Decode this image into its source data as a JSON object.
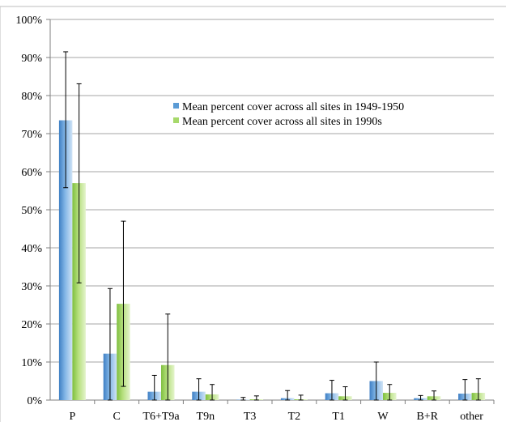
{
  "chart_data": {
    "type": "bar",
    "categories": [
      "P",
      "C",
      "T6+T9a",
      "T9n",
      "T3",
      "T2",
      "T1",
      "W",
      "B+R",
      "other"
    ],
    "series": [
      {
        "name": "Mean percent cover across all sites in 1949-1950",
        "values": [
          73.5,
          12.2,
          2.2,
          2.2,
          0.1,
          0.5,
          1.8,
          5.0,
          0.5,
          1.7
        ],
        "error_upper": [
          91.5,
          29.3,
          6.5,
          5.6,
          0.7,
          2.5,
          5.2,
          10.0,
          1.2,
          5.4
        ],
        "error_lower": [
          55.8,
          0.0,
          0.0,
          0.0,
          0.0,
          0.0,
          0.0,
          0.0,
          0.0,
          0.0
        ],
        "color": "#5b9bd5"
      },
      {
        "name": "Mean percent cover across all sites in 1990s",
        "values": [
          57.0,
          25.3,
          9.2,
          1.5,
          0.2,
          0.2,
          1.0,
          1.9,
          1.0,
          1.9
        ],
        "error_upper": [
          83.1,
          47.0,
          22.6,
          4.1,
          1.1,
          1.3,
          3.5,
          4.1,
          2.4,
          5.6
        ],
        "error_lower": [
          30.8,
          3.6,
          0.0,
          0.0,
          0.0,
          0.0,
          0.0,
          0.0,
          0.0,
          0.0
        ],
        "color": "#a7d96b"
      }
    ],
    "yticks": [
      "0%",
      "10%",
      "20%",
      "30%",
      "40%",
      "50%",
      "60%",
      "70%",
      "80%",
      "90%",
      "100%"
    ],
    "ylim": [
      0,
      100
    ],
    "grid": true,
    "legend_position": "upper-middle"
  }
}
